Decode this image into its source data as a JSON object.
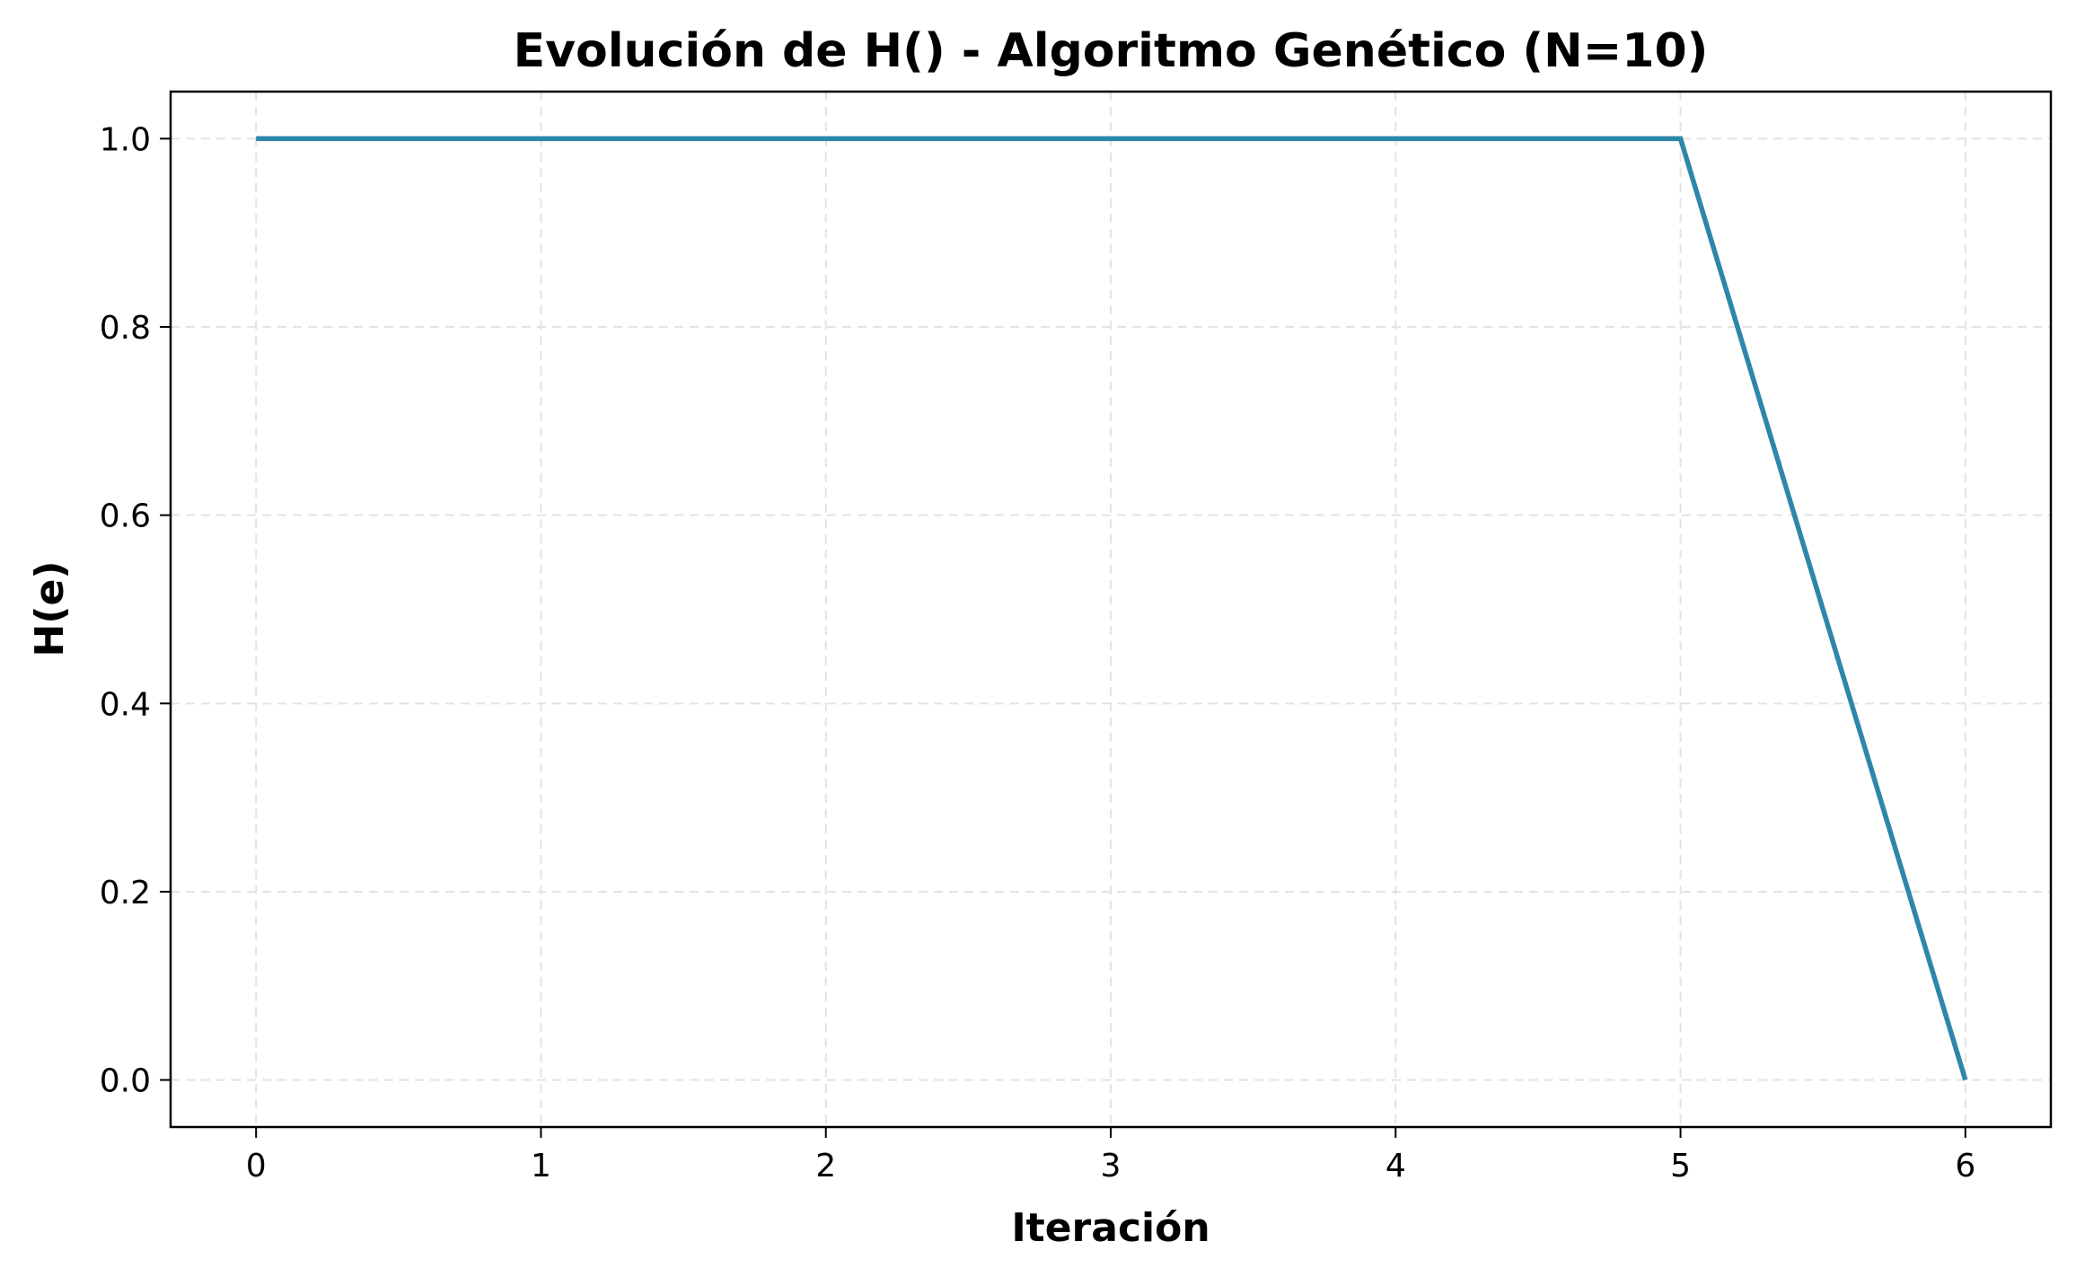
{
  "chart_data": {
    "type": "line",
    "title": "Evolución de H() - Algoritmo Genético (N=10)",
    "xlabel": "Iteración",
    "ylabel": "H(e)",
    "x": [
      0,
      1,
      2,
      3,
      4,
      5,
      6
    ],
    "series": [
      {
        "values": [
          1.0,
          1.0,
          1.0,
          1.0,
          1.0,
          1.0,
          0.0
        ],
        "color": "#2e86ab"
      }
    ],
    "xlim": [
      -0.3,
      6.3
    ],
    "ylim": [
      -0.05,
      1.05
    ],
    "xticks": [
      0,
      1,
      2,
      3,
      4,
      5,
      6
    ],
    "xtick_labels": [
      "0",
      "1",
      "2",
      "3",
      "4",
      "5",
      "6"
    ],
    "yticks": [
      0.0,
      0.2,
      0.4,
      0.6,
      0.8,
      1.0
    ],
    "ytick_labels": [
      "0.0",
      "0.2",
      "0.4",
      "0.6",
      "0.8",
      "1.0"
    ],
    "grid": true,
    "legend": "none"
  }
}
